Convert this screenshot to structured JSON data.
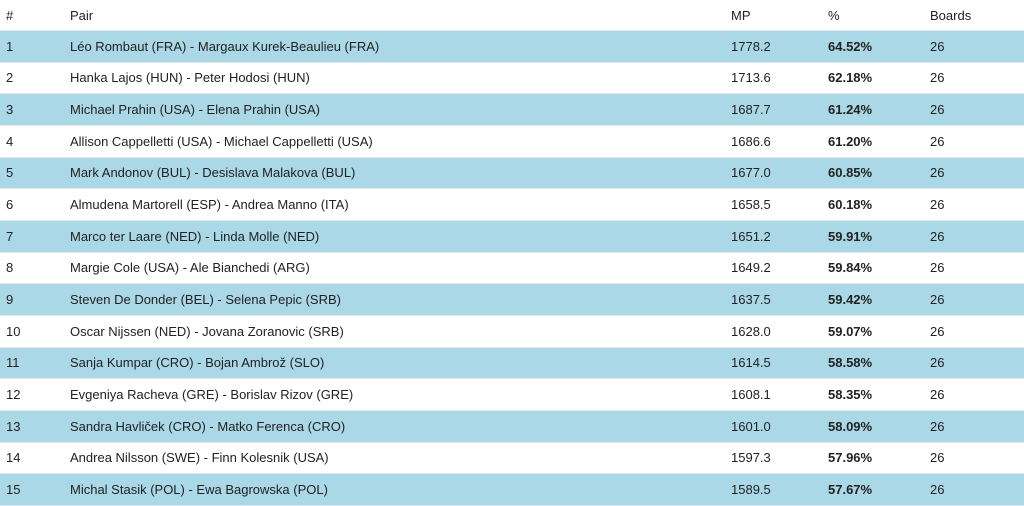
{
  "table": {
    "header": [
      "#",
      "Pair",
      "MP",
      "%",
      "Boards"
    ],
    "rows": [
      [
        "1",
        "Léo Rombaut (FRA) - Margaux Kurek-Beaulieu (FRA)",
        "1778.2",
        "64.52%",
        "26"
      ],
      [
        "2",
        "Hanka Lajos (HUN) - Peter Hodosi (HUN)",
        "1713.6",
        "62.18%",
        "26"
      ],
      [
        "3",
        "Michael Prahin (USA) - Elena Prahin (USA)",
        "1687.7",
        "61.24%",
        "26"
      ],
      [
        "4",
        "Allison Cappelletti (USA) - Michael Cappelletti (USA)",
        "1686.6",
        "61.20%",
        "26"
      ],
      [
        "5",
        "Mark Andonov (BUL) - Desislava Malakova (BUL)",
        "1677.0",
        "60.85%",
        "26"
      ],
      [
        "6",
        "Almudena Martorell (ESP) - Andrea Manno (ITA)",
        "1658.5",
        "60.18%",
        "26"
      ],
      [
        "7",
        "Marco ter Laare (NED) - Linda Molle (NED)",
        "1651.2",
        "59.91%",
        "26"
      ],
      [
        "8",
        "Margie Cole (USA) - Ale Bianchedi (ARG)",
        "1649.2",
        "59.84%",
        "26"
      ],
      [
        "9",
        "Steven De Donder (BEL) - Selena Pepic (SRB)",
        "1637.5",
        "59.42%",
        "26"
      ],
      [
        "10",
        "Oscar Nijssen (NED) - Jovana Zoranovic (SRB)",
        "1628.0",
        "59.07%",
        "26"
      ],
      [
        "11",
        "Sanja Kumpar (CRO) - Bojan Ambrož (SLO)",
        "1614.5",
        "58.58%",
        "26"
      ],
      [
        "12",
        "Evgeniya Racheva (GRE) - Borislav Rizov (GRE)",
        "1608.1",
        "58.35%",
        "26"
      ],
      [
        "13",
        "Sandra Havliček (CRO) - Matko Ferenca (CRO)",
        "1601.0",
        "58.09%",
        "26"
      ],
      [
        "14",
        "Andrea Nilsson (SWE) - Finn Kolesnik (USA)",
        "1597.3",
        "57.96%",
        "26"
      ],
      [
        "15",
        "Michal Stasik (POL) - Ewa Bagrowska (POL)",
        "1589.5",
        "57.67%",
        "26"
      ]
    ]
  }
}
